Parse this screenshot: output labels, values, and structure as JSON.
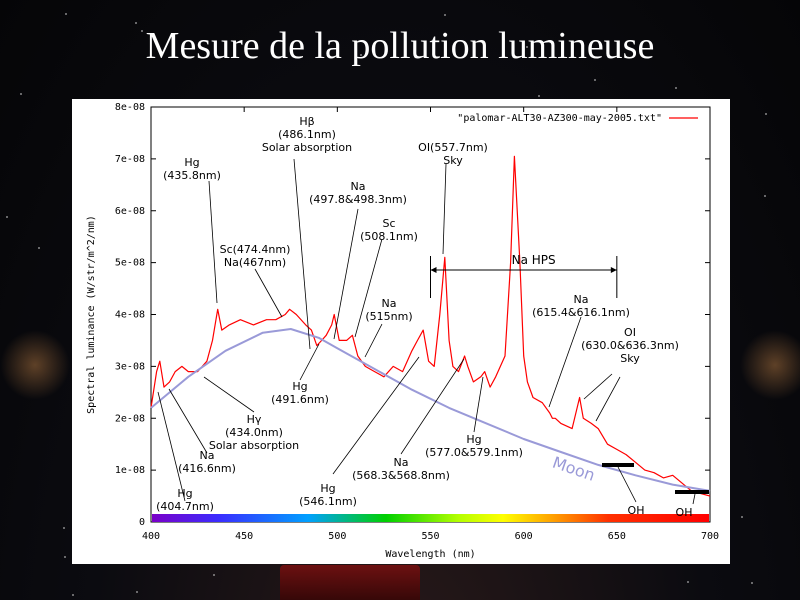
{
  "slide": {
    "title": "Mesure de la pollution lumineuse"
  },
  "chart_data": {
    "type": "line",
    "xlabel": "Wavelength (nm)",
    "ylabel": "Spectral luminance (W/str/m^2/nm)",
    "xlim": [
      400,
      700
    ],
    "ylim": [
      0,
      8e-08
    ],
    "xticks": [
      "400",
      "450",
      "500",
      "550",
      "600",
      "650",
      "700"
    ],
    "yticks": [
      "0",
      "1e-08",
      "2e-08",
      "3e-08",
      "4e-08",
      "5e-08",
      "6e-08",
      "7e-08",
      "8e-08"
    ],
    "legend": {
      "label": "\"palomar-ALT30-AZ300-may-2005.txt\"",
      "position": "top-right",
      "color": "#ff0000"
    },
    "series": [
      {
        "name": "\"palomar-ALT30-AZ300-may-2005.txt\"",
        "color": "#ff0000",
        "x": [
          400,
          403,
          404.7,
          407,
          410,
          413,
          416.6,
          420,
          425,
          430,
          433,
          435.8,
          438,
          442,
          448,
          455,
          462,
          467,
          472,
          474.4,
          478,
          483,
          486.1,
          489,
          491.6,
          494,
          497,
          498.3,
          501,
          505,
          508.1,
          511,
          515,
          520,
          525,
          530,
          535,
          540,
          543,
          546.1,
          549,
          552,
          555,
          557.7,
          560,
          562,
          565,
          568.3,
          570,
          573,
          577,
          579.1,
          582,
          585,
          590,
          593,
          595,
          598,
          600,
          602,
          605,
          610,
          614,
          615.4,
          617,
          620,
          626,
          630,
          632,
          636.3,
          640,
          645,
          650,
          655,
          660,
          665,
          670,
          675,
          680,
          685,
          690,
          695,
          700
        ],
        "y": [
          2.2e-08,
          2.9e-08,
          3.1e-08,
          2.6e-08,
          2.7e-08,
          2.9e-08,
          3e-08,
          2.9e-08,
          2.9e-08,
          3.1e-08,
          3.5e-08,
          4.1e-08,
          3.7e-08,
          3.8e-08,
          3.9e-08,
          3.8e-08,
          3.9e-08,
          3.9e-08,
          4e-08,
          4.1e-08,
          4e-08,
          3.8e-08,
          3.7e-08,
          3.4e-08,
          3.5e-08,
          3.6e-08,
          3.8e-08,
          4e-08,
          3.5e-08,
          3.5e-08,
          3.6e-08,
          3.2e-08,
          3e-08,
          2.9e-08,
          2.8e-08,
          3e-08,
          2.9e-08,
          3.3e-08,
          3.5e-08,
          3.7e-08,
          3.1e-08,
          3e-08,
          4e-08,
          5.1e-08,
          3.5e-08,
          3e-08,
          2.9e-08,
          3.2e-08,
          3e-08,
          2.7e-08,
          2.8e-08,
          2.9e-08,
          2.6e-08,
          2.8e-08,
          3.2e-08,
          5e-08,
          7.05e-08,
          5e-08,
          3.2e-08,
          2.7e-08,
          2.4e-08,
          2.3e-08,
          2.1e-08,
          2e-08,
          2e-08,
          1.9e-08,
          1.8e-08,
          2.4e-08,
          2e-08,
          1.9e-08,
          1.8e-08,
          1.5e-08,
          1.4e-08,
          1.3e-08,
          1.15e-08,
          1e-08,
          9.5e-09,
          8.5e-09,
          9e-09,
          7.5e-09,
          6e-09,
          5.5e-09,
          5e-09
        ]
      },
      {
        "name": "Moon",
        "color": "#9a9ad8",
        "x": [
          400,
          420,
          440,
          460,
          475,
          490,
          500,
          520,
          540,
          560,
          580,
          600,
          620,
          640,
          660,
          680,
          700
        ],
        "y": [
          2.2e-08,
          2.8e-08,
          3.3e-08,
          3.65e-08,
          3.72e-08,
          3.55e-08,
          3.35e-08,
          2.95e-08,
          2.55e-08,
          2.2e-08,
          1.9e-08,
          1.6e-08,
          1.35e-08,
          1.1e-08,
          9e-09,
          7.2e-09,
          6e-09
        ]
      }
    ],
    "annotations": [
      {
        "id": "hg-404",
        "lines": [
          "Hg",
          "(404.7nm)"
        ],
        "x": 404.7
      },
      {
        "id": "na-416",
        "lines": [
          "Na",
          "(416.6nm)"
        ],
        "x": 416.6
      },
      {
        "id": "hg-435",
        "lines": [
          "Hg",
          "(435.8nm)"
        ],
        "x": 435.8
      },
      {
        "id": "hgamma",
        "lines": [
          "Hγ",
          "(434.0nm)",
          "Solar absorption"
        ],
        "x": 434.0
      },
      {
        "id": "sc-474",
        "lines": [
          "Sc(474.4nm)",
          "Na(467nm)"
        ],
        "x": 474.4
      },
      {
        "id": "hbeta",
        "lines": [
          "Hβ",
          "(486.1nm)",
          "Solar absorption"
        ],
        "x": 486.1
      },
      {
        "id": "hg-491",
        "lines": [
          "Hg",
          "(491.6nm)"
        ],
        "x": 491.6
      },
      {
        "id": "na-497",
        "lines": [
          "Na",
          "(497.8&498.3nm)"
        ],
        "x": 498.3
      },
      {
        "id": "sc-508",
        "lines": [
          "Sc",
          "(508.1nm)"
        ],
        "x": 508.1
      },
      {
        "id": "na-515",
        "lines": [
          "Na",
          "(515nm)"
        ],
        "x": 515
      },
      {
        "id": "hg-546",
        "lines": [
          "Hg",
          "(546.1nm)"
        ],
        "x": 546.1
      },
      {
        "id": "oi-557",
        "lines": [
          "OI(557.7nm)",
          "Sky"
        ],
        "x": 557.7
      },
      {
        "id": "na-568",
        "lines": [
          "Na",
          "(568.3&568.8nm)"
        ],
        "x": 568.3
      },
      {
        "id": "hg-577",
        "lines": [
          "Hg",
          "(577.0&579.1nm)"
        ],
        "x": 579.1
      },
      {
        "id": "na-hps",
        "lines": [
          "Na HPS"
        ],
        "x_range": [
          550,
          650
        ]
      },
      {
        "id": "na-615",
        "lines": [
          "Na",
          "(615.4&616.1nm)"
        ],
        "x": 615.4
      },
      {
        "id": "oi-630",
        "lines": [
          "OI",
          "(630.0&636.3nm)",
          "Sky"
        ],
        "x": 630.0
      },
      {
        "id": "moon",
        "lines": [
          "Moon"
        ]
      },
      {
        "id": "oh-1",
        "lines": [
          "OH"
        ],
        "x_range": [
          640,
          658
        ]
      },
      {
        "id": "oh-2",
        "lines": [
          "OH"
        ],
        "x_range": [
          680,
          700
        ]
      }
    ],
    "grid": false
  }
}
